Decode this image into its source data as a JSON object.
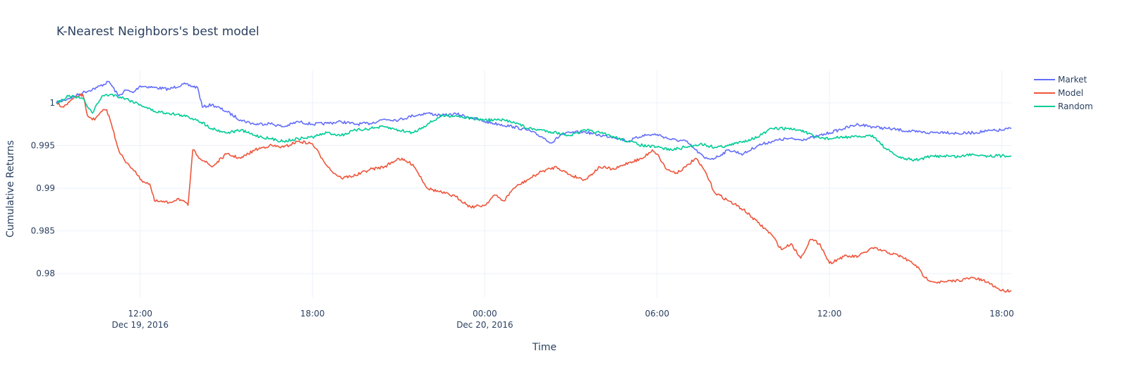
{
  "chart_data": {
    "type": "line",
    "title": "K-Nearest Neighbors's best model",
    "xlabel": "Time",
    "ylabel": "Cumulative Returns",
    "x_range": [
      "2016-12-19T09:05",
      "2016-12-20T18:20"
    ],
    "ylim": [
      0.9772,
      1.0038
    ],
    "grid": true,
    "legend_position": "top-right",
    "x_ticks": [
      {
        "value": "2016-12-19T12:00",
        "label": "12:00",
        "sublabel": "Dec 19, 2016"
      },
      {
        "value": "2016-12-19T18:00",
        "label": "18:00",
        "sublabel": ""
      },
      {
        "value": "2016-12-20T00:00",
        "label": "00:00",
        "sublabel": "Dec 20, 2016"
      },
      {
        "value": "2016-12-20T06:00",
        "label": "06:00",
        "sublabel": ""
      },
      {
        "value": "2016-12-20T12:00",
        "label": "12:00",
        "sublabel": ""
      },
      {
        "value": "2016-12-20T18:00",
        "label": "18:00",
        "sublabel": ""
      }
    ],
    "y_ticks": [
      {
        "value": 0.98,
        "label": "0.98"
      },
      {
        "value": 0.985,
        "label": "0.985"
      },
      {
        "value": 0.99,
        "label": "0.99"
      },
      {
        "value": 0.995,
        "label": "0.995"
      },
      {
        "value": 1.0,
        "label": "1"
      }
    ],
    "series": [
      {
        "name": "Market",
        "color": "#636efa",
        "points": [
          [
            "2016-12-19T09:05",
            1.0
          ],
          [
            "2016-12-19T09:30",
            1.0005
          ],
          [
            "2016-12-19T10:00",
            1.0012
          ],
          [
            "2016-12-19T10:30",
            1.0018
          ],
          [
            "2016-12-19T10:55",
            1.0025
          ],
          [
            "2016-12-19T11:15",
            1.0008
          ],
          [
            "2016-12-19T11:30",
            1.0015
          ],
          [
            "2016-12-19T11:45",
            1.0012
          ],
          [
            "2016-12-19T12:00",
            1.002
          ],
          [
            "2016-12-19T12:30",
            1.0018
          ],
          [
            "2016-12-19T13:00",
            1.0016
          ],
          [
            "2016-12-19T13:30",
            1.0022
          ],
          [
            "2016-12-19T14:00",
            1.0018
          ],
          [
            "2016-12-19T14:10",
            0.9995
          ],
          [
            "2016-12-19T14:30",
            0.9998
          ],
          [
            "2016-12-19T15:00",
            0.999
          ],
          [
            "2016-12-19T15:30",
            0.998
          ],
          [
            "2016-12-19T16:00",
            0.9975
          ],
          [
            "2016-12-19T16:30",
            0.9976
          ],
          [
            "2016-12-19T17:00",
            0.9972
          ],
          [
            "2016-12-19T17:30",
            0.9978
          ],
          [
            "2016-12-19T18:00",
            0.9975
          ],
          [
            "2016-12-19T18:30",
            0.9976
          ],
          [
            "2016-12-19T19:00",
            0.9978
          ],
          [
            "2016-12-19T19:30",
            0.9975
          ],
          [
            "2016-12-19T20:00",
            0.9976
          ],
          [
            "2016-12-19T20:30",
            0.9981
          ],
          [
            "2016-12-19T21:00",
            0.998
          ],
          [
            "2016-12-19T21:30",
            0.9985
          ],
          [
            "2016-12-19T22:00",
            0.9988
          ],
          [
            "2016-12-19T22:30",
            0.9985
          ],
          [
            "2016-12-19T23:00",
            0.9987
          ],
          [
            "2016-12-19T23:30",
            0.9983
          ],
          [
            "2016-12-20T00:00",
            0.9978
          ],
          [
            "2016-12-20T00:30",
            0.9975
          ],
          [
            "2016-12-20T01:00",
            0.9972
          ],
          [
            "2016-12-20T01:30",
            0.9968
          ],
          [
            "2016-12-20T02:00",
            0.996
          ],
          [
            "2016-12-20T02:20",
            0.9953
          ],
          [
            "2016-12-20T02:40",
            0.9963
          ],
          [
            "2016-12-20T03:00",
            0.9965
          ],
          [
            "2016-12-20T03:30",
            0.9966
          ],
          [
            "2016-12-20T04:00",
            0.9962
          ],
          [
            "2016-12-20T04:30",
            0.996
          ],
          [
            "2016-12-20T05:00",
            0.9955
          ],
          [
            "2016-12-20T05:30",
            0.9962
          ],
          [
            "2016-12-20T06:00",
            0.9963
          ],
          [
            "2016-12-20T06:30",
            0.9957
          ],
          [
            "2016-12-20T07:00",
            0.9955
          ],
          [
            "2016-12-20T07:20",
            0.9945
          ],
          [
            "2016-12-20T07:40",
            0.9935
          ],
          [
            "2016-12-20T08:00",
            0.9935
          ],
          [
            "2016-12-20T08:30",
            0.9945
          ],
          [
            "2016-12-20T09:00",
            0.994
          ],
          [
            "2016-12-20T09:30",
            0.995
          ],
          [
            "2016-12-20T10:00",
            0.9955
          ],
          [
            "2016-12-20T10:30",
            0.9958
          ],
          [
            "2016-12-20T11:00",
            0.9957
          ],
          [
            "2016-12-20T11:30",
            0.996
          ],
          [
            "2016-12-20T12:00",
            0.9965
          ],
          [
            "2016-12-20T12:30",
            0.997
          ],
          [
            "2016-12-20T13:00",
            0.9975
          ],
          [
            "2016-12-20T13:30",
            0.9972
          ],
          [
            "2016-12-20T14:00",
            0.997
          ],
          [
            "2016-12-20T14:30",
            0.9968
          ],
          [
            "2016-12-20T15:00",
            0.9966
          ],
          [
            "2016-12-20T15:30",
            0.9965
          ],
          [
            "2016-12-20T16:00",
            0.9966
          ],
          [
            "2016-12-20T16:30",
            0.9964
          ],
          [
            "2016-12-20T17:00",
            0.9965
          ],
          [
            "2016-12-20T17:30",
            0.9967
          ],
          [
            "2016-12-20T18:00",
            0.9968
          ],
          [
            "2016-12-20T18:20",
            0.997
          ]
        ]
      },
      {
        "name": "Model",
        "color": "#ef553b",
        "points": [
          [
            "2016-12-19T09:05",
            1.0
          ],
          [
            "2016-12-19T09:20",
            0.9995
          ],
          [
            "2016-12-19T09:40",
            1.0005
          ],
          [
            "2016-12-19T10:00",
            1.001
          ],
          [
            "2016-12-19T10:10",
            0.9985
          ],
          [
            "2016-12-19T10:25",
            0.998
          ],
          [
            "2016-12-19T10:40",
            0.999
          ],
          [
            "2016-12-19T10:50",
            0.9992
          ],
          [
            "2016-12-19T11:00",
            0.9975
          ],
          [
            "2016-12-19T11:15",
            0.9945
          ],
          [
            "2016-12-19T11:30",
            0.993
          ],
          [
            "2016-12-19T11:50",
            0.992
          ],
          [
            "2016-12-19T12:00",
            0.991
          ],
          [
            "2016-12-19T12:20",
            0.9905
          ],
          [
            "2016-12-19T12:30",
            0.9885
          ],
          [
            "2016-12-19T13:00",
            0.9883
          ],
          [
            "2016-12-19T13:20",
            0.9888
          ],
          [
            "2016-12-19T13:40",
            0.988
          ],
          [
            "2016-12-19T13:50",
            0.9945
          ],
          [
            "2016-12-19T14:00",
            0.9938
          ],
          [
            "2016-12-19T14:30",
            0.9925
          ],
          [
            "2016-12-19T15:00",
            0.994
          ],
          [
            "2016-12-19T15:30",
            0.9935
          ],
          [
            "2016-12-19T16:00",
            0.9945
          ],
          [
            "2016-12-19T16:30",
            0.995
          ],
          [
            "2016-12-19T17:00",
            0.9948
          ],
          [
            "2016-12-19T17:30",
            0.9955
          ],
          [
            "2016-12-19T18:00",
            0.9952
          ],
          [
            "2016-12-19T18:20",
            0.9935
          ],
          [
            "2016-12-19T18:40",
            0.992
          ],
          [
            "2016-12-19T19:00",
            0.9912
          ],
          [
            "2016-12-19T19:30",
            0.9915
          ],
          [
            "2016-12-19T20:00",
            0.9922
          ],
          [
            "2016-12-19T20:30",
            0.9925
          ],
          [
            "2016-12-19T21:00",
            0.9935
          ],
          [
            "2016-12-19T21:30",
            0.9928
          ],
          [
            "2016-12-19T22:00",
            0.99
          ],
          [
            "2016-12-19T22:30",
            0.9895
          ],
          [
            "2016-12-19T23:00",
            0.989
          ],
          [
            "2016-12-19T23:30",
            0.9878
          ],
          [
            "2016-12-20T00:00",
            0.988
          ],
          [
            "2016-12-20T00:20",
            0.9892
          ],
          [
            "2016-12-20T00:40",
            0.9885
          ],
          [
            "2016-12-20T01:00",
            0.99
          ],
          [
            "2016-12-20T01:30",
            0.991
          ],
          [
            "2016-12-20T02:00",
            0.992
          ],
          [
            "2016-12-20T02:30",
            0.9925
          ],
          [
            "2016-12-20T03:00",
            0.9915
          ],
          [
            "2016-12-20T03:30",
            0.991
          ],
          [
            "2016-12-20T04:00",
            0.9925
          ],
          [
            "2016-12-20T04:30",
            0.9922
          ],
          [
            "2016-12-20T05:00",
            0.993
          ],
          [
            "2016-12-20T05:30",
            0.9935
          ],
          [
            "2016-12-20T05:50",
            0.9945
          ],
          [
            "2016-12-20T06:00",
            0.994
          ],
          [
            "2016-12-20T06:20",
            0.9922
          ],
          [
            "2016-12-20T06:40",
            0.9918
          ],
          [
            "2016-12-20T07:00",
            0.9925
          ],
          [
            "2016-12-20T07:20",
            0.9935
          ],
          [
            "2016-12-20T07:40",
            0.992
          ],
          [
            "2016-12-20T08:00",
            0.9895
          ],
          [
            "2016-12-20T08:30",
            0.9885
          ],
          [
            "2016-12-20T09:00",
            0.9875
          ],
          [
            "2016-12-20T09:30",
            0.986
          ],
          [
            "2016-12-20T10:00",
            0.9845
          ],
          [
            "2016-12-20T10:20",
            0.9828
          ],
          [
            "2016-12-20T10:40",
            0.9835
          ],
          [
            "2016-12-20T11:00",
            0.9818
          ],
          [
            "2016-12-20T11:20",
            0.984
          ],
          [
            "2016-12-20T11:40",
            0.9835
          ],
          [
            "2016-12-20T12:00",
            0.9812
          ],
          [
            "2016-12-20T12:30",
            0.982
          ],
          [
            "2016-12-20T13:00",
            0.982
          ],
          [
            "2016-12-20T13:30",
            0.983
          ],
          [
            "2016-12-20T14:00",
            0.9825
          ],
          [
            "2016-12-20T14:30",
            0.982
          ],
          [
            "2016-12-20T15:00",
            0.981
          ],
          [
            "2016-12-20T15:20",
            0.9795
          ],
          [
            "2016-12-20T15:40",
            0.979
          ],
          [
            "2016-12-20T16:00",
            0.979
          ],
          [
            "2016-12-20T16:30",
            0.9792
          ],
          [
            "2016-12-20T17:00",
            0.9795
          ],
          [
            "2016-12-20T17:30",
            0.979
          ],
          [
            "2016-12-20T18:00",
            0.978
          ],
          [
            "2016-12-20T18:20",
            0.978
          ]
        ]
      },
      {
        "name": "Random",
        "color": "#00cc96",
        "points": [
          [
            "2016-12-19T09:05",
            1.0
          ],
          [
            "2016-12-19T09:30",
            1.0008
          ],
          [
            "2016-12-19T10:00",
            1.0005
          ],
          [
            "2016-12-19T10:20",
            0.9988
          ],
          [
            "2016-12-19T10:40",
            1.0008
          ],
          [
            "2016-12-19T11:00",
            1.001
          ],
          [
            "2016-12-19T11:30",
            1.0005
          ],
          [
            "2016-12-19T12:00",
            0.9998
          ],
          [
            "2016-12-19T12:30",
            0.999
          ],
          [
            "2016-12-19T13:00",
            0.9988
          ],
          [
            "2016-12-19T13:30",
            0.9985
          ],
          [
            "2016-12-19T14:00",
            0.998
          ],
          [
            "2016-12-19T14:30",
            0.997
          ],
          [
            "2016-12-19T15:00",
            0.9965
          ],
          [
            "2016-12-19T15:30",
            0.9968
          ],
          [
            "2016-12-19T16:00",
            0.9962
          ],
          [
            "2016-12-19T16:30",
            0.9958
          ],
          [
            "2016-12-19T17:00",
            0.9955
          ],
          [
            "2016-12-19T17:30",
            0.9958
          ],
          [
            "2016-12-19T18:00",
            0.996
          ],
          [
            "2016-12-19T18:30",
            0.9965
          ],
          [
            "2016-12-19T19:00",
            0.9962
          ],
          [
            "2016-12-19T19:30",
            0.9968
          ],
          [
            "2016-12-19T20:00",
            0.997
          ],
          [
            "2016-12-19T20:30",
            0.9972
          ],
          [
            "2016-12-19T21:00",
            0.9968
          ],
          [
            "2016-12-19T21:30",
            0.9965
          ],
          [
            "2016-12-19T22:00",
            0.9975
          ],
          [
            "2016-12-19T22:30",
            0.9985
          ],
          [
            "2016-12-19T23:00",
            0.9985
          ],
          [
            "2016-12-19T23:30",
            0.9982
          ],
          [
            "2016-12-20T00:00",
            0.998
          ],
          [
            "2016-12-20T00:30",
            0.998
          ],
          [
            "2016-12-20T01:00",
            0.9978
          ],
          [
            "2016-12-20T01:30",
            0.997
          ],
          [
            "2016-12-20T02:00",
            0.9968
          ],
          [
            "2016-12-20T02:30",
            0.9965
          ],
          [
            "2016-12-20T03:00",
            0.9962
          ],
          [
            "2016-12-20T03:30",
            0.9968
          ],
          [
            "2016-12-20T04:00",
            0.9965
          ],
          [
            "2016-12-20T04:30",
            0.996
          ],
          [
            "2016-12-20T05:00",
            0.9955
          ],
          [
            "2016-12-20T05:30",
            0.995
          ],
          [
            "2016-12-20T06:00",
            0.9948
          ],
          [
            "2016-12-20T06:30",
            0.9945
          ],
          [
            "2016-12-20T07:00",
            0.9948
          ],
          [
            "2016-12-20T07:30",
            0.9952
          ],
          [
            "2016-12-20T08:00",
            0.9948
          ],
          [
            "2016-12-20T08:30",
            0.995
          ],
          [
            "2016-12-20T09:00",
            0.9955
          ],
          [
            "2016-12-20T09:30",
            0.996
          ],
          [
            "2016-12-20T10:00",
            0.997
          ],
          [
            "2016-12-20T10:30",
            0.997
          ],
          [
            "2016-12-20T11:00",
            0.9968
          ],
          [
            "2016-12-20T11:30",
            0.996
          ],
          [
            "2016-12-20T12:00",
            0.9958
          ],
          [
            "2016-12-20T12:30",
            0.996
          ],
          [
            "2016-12-20T13:00",
            0.996
          ],
          [
            "2016-12-20T13:30",
            0.9962
          ],
          [
            "2016-12-20T14:00",
            0.9945
          ],
          [
            "2016-12-20T14:30",
            0.9935
          ],
          [
            "2016-12-20T15:00",
            0.9933
          ],
          [
            "2016-12-20T15:30",
            0.9937
          ],
          [
            "2016-12-20T16:00",
            0.9938
          ],
          [
            "2016-12-20T16:30",
            0.9937
          ],
          [
            "2016-12-20T17:00",
            0.994
          ],
          [
            "2016-12-20T17:30",
            0.9938
          ],
          [
            "2016-12-20T18:00",
            0.9938
          ],
          [
            "2016-12-20T18:20",
            0.9938
          ]
        ]
      }
    ]
  }
}
